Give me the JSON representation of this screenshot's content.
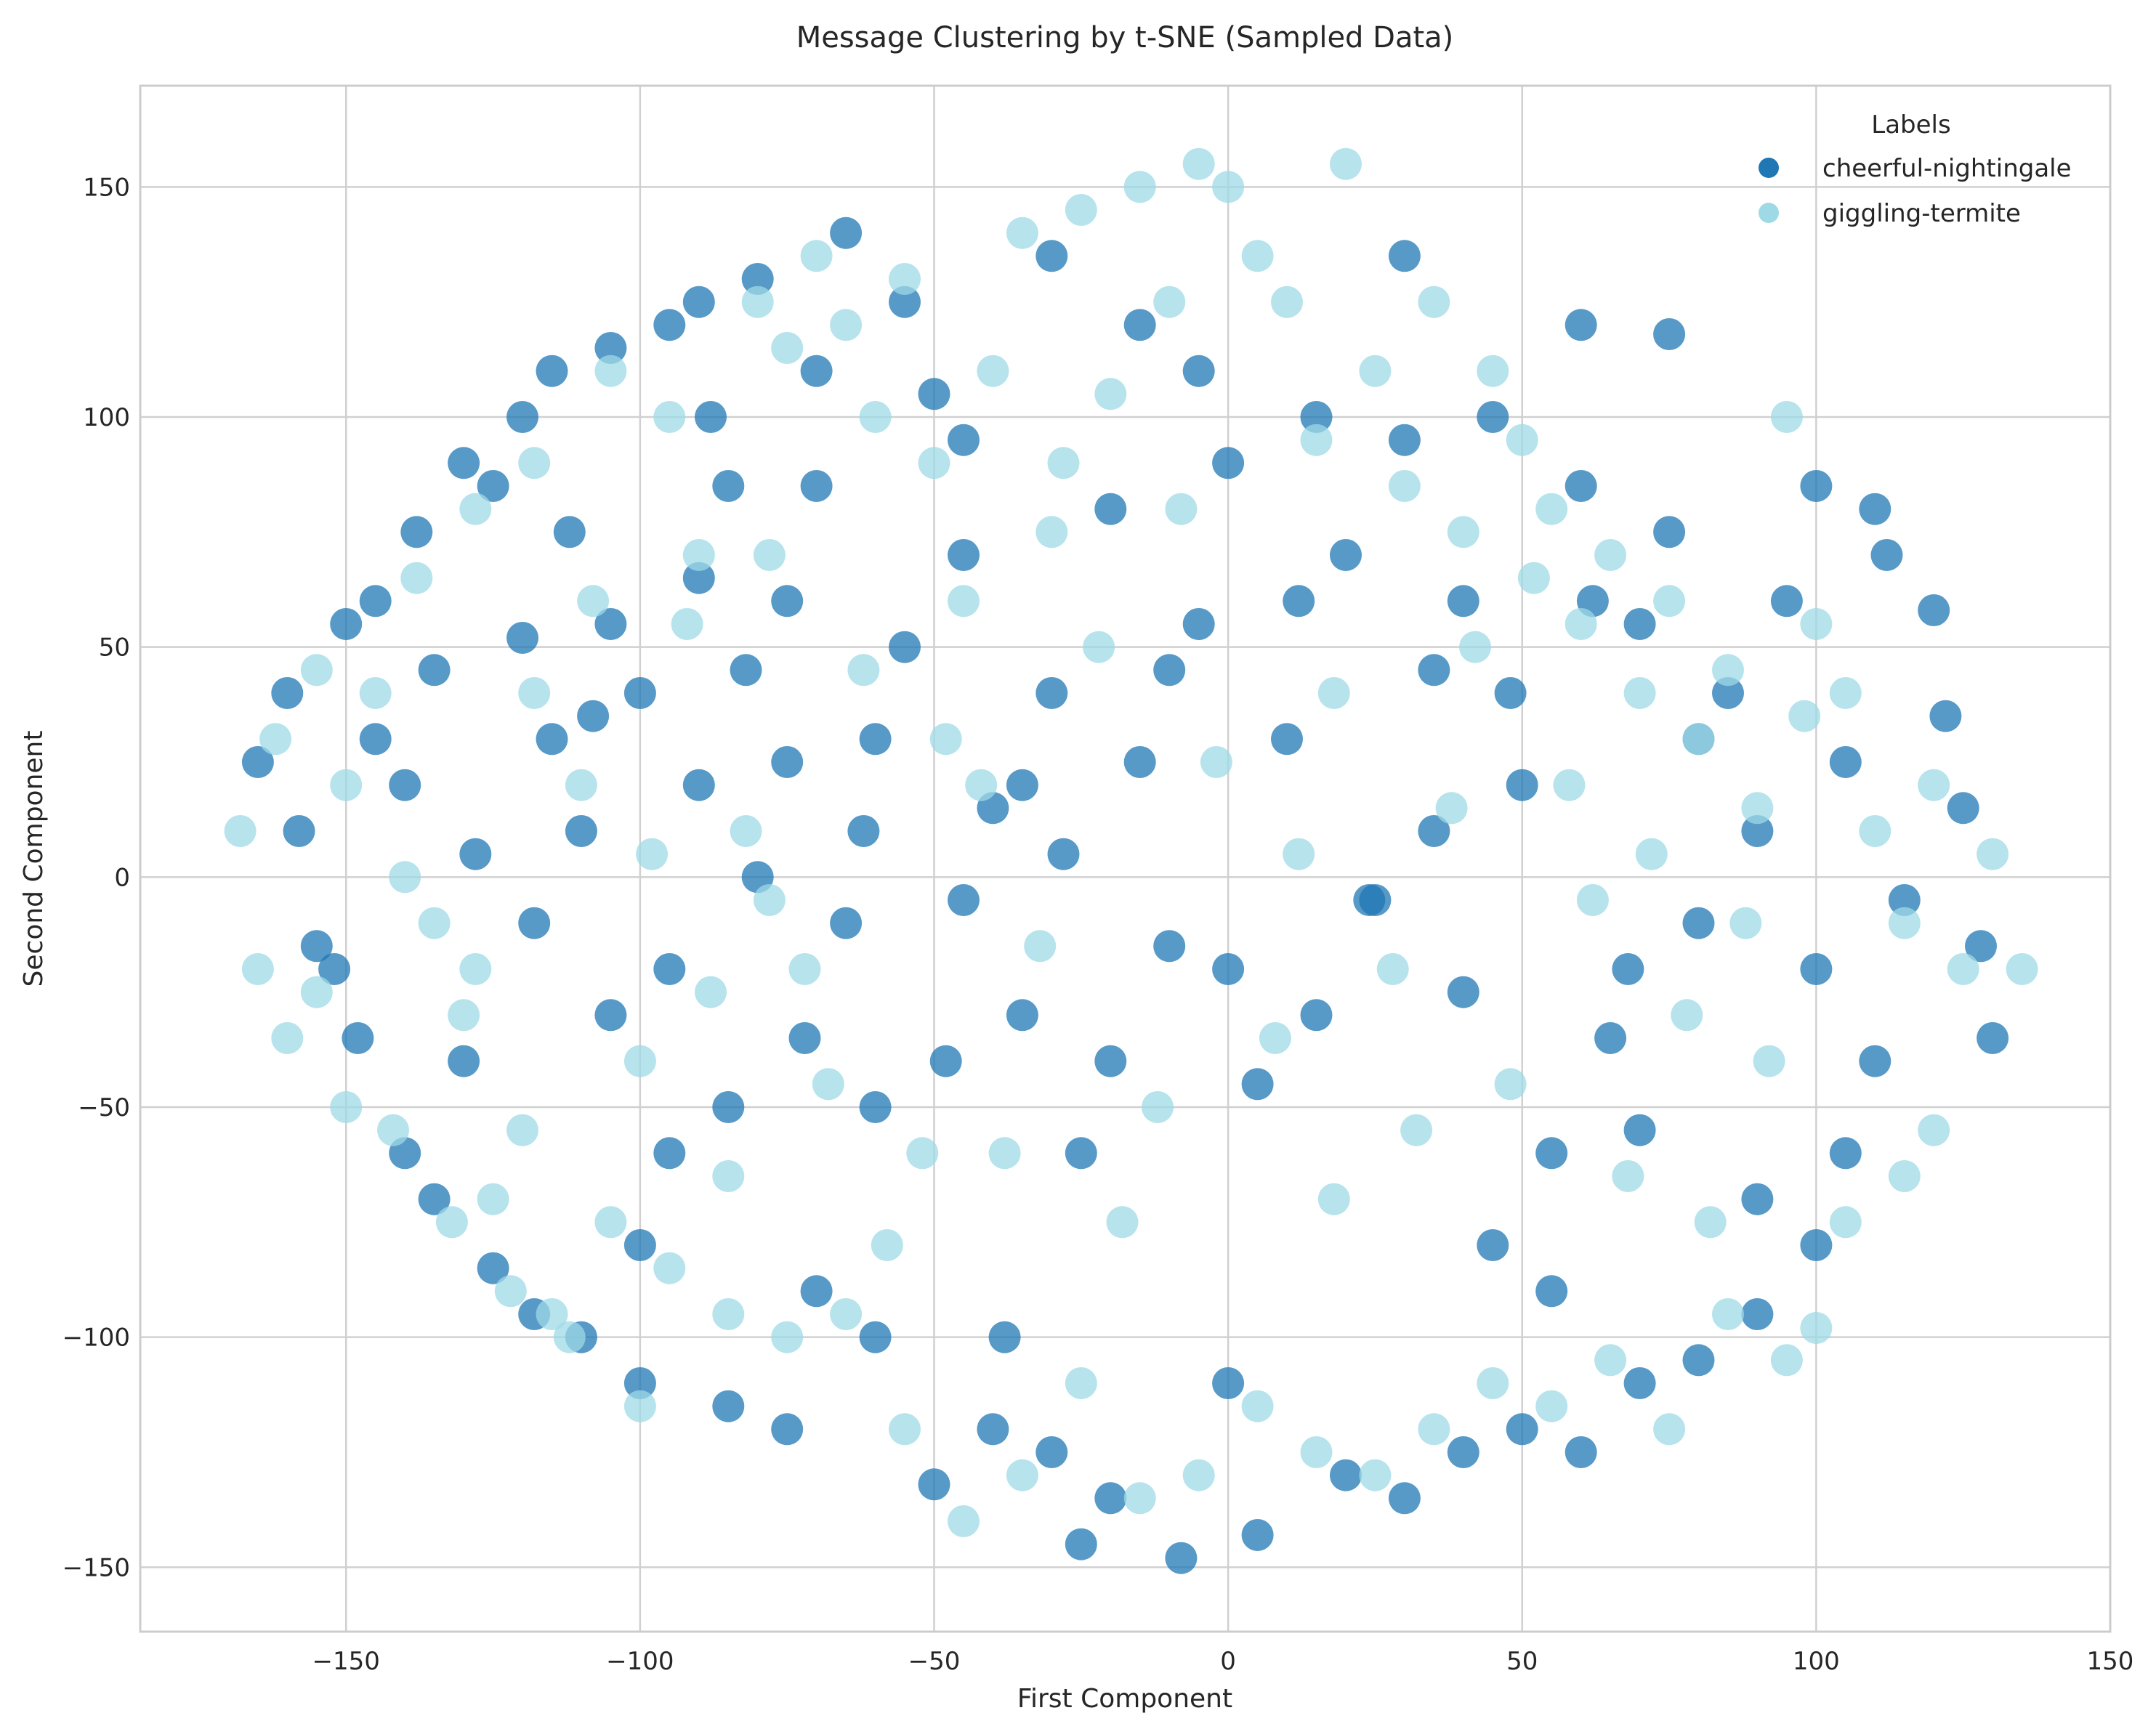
{
  "chart_data": {
    "type": "scatter",
    "title": "Message Clustering by t-SNE (Sampled Data)",
    "xlabel": "First Component",
    "ylabel": "Second Component",
    "xlim": [
      -185,
      150
    ],
    "ylim": [
      -164,
      172
    ],
    "x_ticks": [
      -150,
      -100,
      -50,
      0,
      50,
      100,
      150
    ],
    "x_tick_labels": [
      "−150",
      "−100",
      "−50",
      "0",
      "50",
      "100",
      "150"
    ],
    "y_ticks": [
      -150,
      -100,
      -50,
      0,
      50,
      100,
      150
    ],
    "y_tick_labels": [
      "−150",
      "−100",
      "−50",
      "0",
      "50",
      "100",
      "150"
    ],
    "grid": true,
    "legend": {
      "title": "Labels",
      "placement": "top-right",
      "entries": [
        "cheerful-nightingale",
        "giggling-termite"
      ]
    },
    "series": [
      {
        "name": "cheerful-nightingale",
        "color": "#1f77b4",
        "points": [
          [
            -165,
            25
          ],
          [
            -160,
            40
          ],
          [
            -158,
            10
          ],
          [
            -155,
            -15
          ],
          [
            -150,
            55
          ],
          [
            -148,
            -35
          ],
          [
            -145,
            60
          ],
          [
            -140,
            -60
          ],
          [
            -138,
            75
          ],
          [
            -135,
            -70
          ],
          [
            -130,
            90
          ],
          [
            -125,
            -85
          ],
          [
            -120,
            100
          ],
          [
            -118,
            -95
          ],
          [
            -115,
            110
          ],
          [
            -110,
            -100
          ],
          [
            -105,
            115
          ],
          [
            -100,
            -110
          ],
          [
            -95,
            120
          ],
          [
            -90,
            125
          ],
          [
            -85,
            -115
          ],
          [
            -80,
            130
          ],
          [
            -125,
            85
          ],
          [
            -120,
            52
          ],
          [
            -115,
            30
          ],
          [
            -110,
            10
          ],
          [
            -105,
            55
          ],
          [
            -100,
            40
          ],
          [
            -95,
            -20
          ],
          [
            -90,
            20
          ],
          [
            -85,
            -50
          ],
          [
            -80,
            0
          ],
          [
            -75,
            60
          ],
          [
            -70,
            85
          ],
          [
            -65,
            -10
          ],
          [
            -60,
            30
          ],
          [
            -55,
            50
          ],
          [
            -50,
            105
          ],
          [
            -45,
            70
          ],
          [
            -40,
            15
          ],
          [
            -35,
            -30
          ],
          [
            -30,
            40
          ],
          [
            -25,
            -60
          ],
          [
            -20,
            80
          ],
          [
            -15,
            25
          ],
          [
            -10,
            -15
          ],
          [
            -5,
            55
          ],
          [
            0,
            90
          ],
          [
            5,
            -45
          ],
          [
            10,
            30
          ],
          [
            15,
            -30
          ],
          [
            20,
            70
          ],
          [
            25,
            -5
          ],
          [
            30,
            135
          ],
          [
            35,
            45
          ],
          [
            40,
            -25
          ],
          [
            45,
            100
          ],
          [
            50,
            20
          ],
          [
            55,
            -60
          ],
          [
            60,
            85
          ],
          [
            65,
            -35
          ],
          [
            70,
            55
          ],
          [
            75,
            118
          ],
          [
            80,
            -10
          ],
          [
            85,
            40
          ],
          [
            90,
            -70
          ],
          [
            95,
            60
          ],
          [
            100,
            85
          ],
          [
            105,
            25
          ],
          [
            110,
            80
          ],
          [
            112,
            70
          ],
          [
            115,
            -5
          ],
          [
            120,
            58
          ],
          [
            122,
            35
          ],
          [
            125,
            15
          ],
          [
            128,
            -15
          ],
          [
            130,
            -35
          ],
          [
            110,
            -40
          ],
          [
            105,
            -60
          ],
          [
            100,
            -80
          ],
          [
            90,
            -95
          ],
          [
            80,
            -105
          ],
          [
            70,
            -110
          ],
          [
            60,
            -125
          ],
          [
            50,
            -120
          ],
          [
            40,
            -125
          ],
          [
            30,
            -135
          ],
          [
            20,
            -130
          ],
          [
            5,
            -143
          ],
          [
            -8,
            -148
          ],
          [
            -20,
            -135
          ],
          [
            -30,
            -125
          ],
          [
            -40,
            -120
          ],
          [
            -50,
            -132
          ],
          [
            -60,
            -100
          ],
          [
            -70,
            -90
          ],
          [
            -75,
            -120
          ],
          [
            -45,
            -5
          ],
          [
            -35,
            20
          ],
          [
            -20,
            -40
          ],
          [
            -10,
            45
          ],
          [
            0,
            -20
          ],
          [
            12,
            60
          ],
          [
            24,
            -5
          ],
          [
            -60,
            -50
          ],
          [
            -75,
            25
          ],
          [
            -90,
            65
          ],
          [
            -105,
            -30
          ],
          [
            -130,
            -40
          ],
          [
            -140,
            20
          ],
          [
            -100,
            -80
          ],
          [
            -85,
            85
          ],
          [
            60,
            120
          ],
          [
            75,
            75
          ],
          [
            90,
            10
          ],
          [
            100,
            -20
          ],
          [
            80,
            30
          ],
          [
            70,
            -55
          ],
          [
            55,
            -90
          ],
          [
            40,
            60
          ],
          [
            30,
            95
          ],
          [
            -5,
            110
          ],
          [
            -15,
            120
          ],
          [
            -30,
            135
          ],
          [
            -45,
            95
          ],
          [
            -55,
            125
          ],
          [
            -65,
            140
          ],
          [
            15,
            100
          ],
          [
            0,
            -110
          ],
          [
            -25,
            -145
          ],
          [
            -38,
            -100
          ],
          [
            45,
            -80
          ],
          [
            62,
            60
          ],
          [
            68,
            -20
          ],
          [
            48,
            40
          ],
          [
            35,
            10
          ],
          [
            -28,
            5
          ],
          [
            -48,
            -40
          ],
          [
            -62,
            10
          ],
          [
            -72,
            -35
          ],
          [
            -82,
            45
          ],
          [
            -95,
            -60
          ],
          [
            -108,
            35
          ],
          [
            -118,
            -10
          ],
          [
            -128,
            5
          ],
          [
            -145,
            30
          ],
          [
            -152,
            -20
          ],
          [
            -135,
            45
          ],
          [
            -112,
            75
          ],
          [
            -88,
            100
          ],
          [
            -70,
            110
          ]
        ]
      },
      {
        "name": "giggling-termite",
        "color": "#9edae5",
        "points": [
          [
            -168,
            10
          ],
          [
            -165,
            -20
          ],
          [
            -162,
            30
          ],
          [
            -160,
            -35
          ],
          [
            -155,
            45
          ],
          [
            -150,
            -50
          ],
          [
            -145,
            40
          ],
          [
            -142,
            -55
          ],
          [
            -138,
            65
          ],
          [
            -132,
            -75
          ],
          [
            -128,
            80
          ],
          [
            -122,
            -90
          ],
          [
            -118,
            90
          ],
          [
            -112,
            -100
          ],
          [
            -105,
            110
          ],
          [
            -100,
            -115
          ],
          [
            -95,
            100
          ],
          [
            -90,
            70
          ],
          [
            -85,
            -95
          ],
          [
            -80,
            125
          ],
          [
            -75,
            115
          ],
          [
            -70,
            135
          ],
          [
            -65,
            120
          ],
          [
            -60,
            100
          ],
          [
            -55,
            130
          ],
          [
            -50,
            90
          ],
          [
            -45,
            60
          ],
          [
            -40,
            110
          ],
          [
            -35,
            140
          ],
          [
            -30,
            75
          ],
          [
            -25,
            145
          ],
          [
            -20,
            105
          ],
          [
            -15,
            150
          ],
          [
            -10,
            125
          ],
          [
            -5,
            155
          ],
          [
            0,
            150
          ],
          [
            5,
            135
          ],
          [
            10,
            125
          ],
          [
            15,
            95
          ],
          [
            20,
            155
          ],
          [
            25,
            110
          ],
          [
            30,
            85
          ],
          [
            35,
            125
          ],
          [
            40,
            75
          ],
          [
            45,
            110
          ],
          [
            50,
            95
          ],
          [
            55,
            80
          ],
          [
            60,
            55
          ],
          [
            65,
            70
          ],
          [
            70,
            40
          ],
          [
            75,
            60
          ],
          [
            80,
            30
          ],
          [
            85,
            45
          ],
          [
            90,
            15
          ],
          [
            95,
            100
          ],
          [
            100,
            55
          ],
          [
            105,
            40
          ],
          [
            110,
            10
          ],
          [
            115,
            -10
          ],
          [
            120,
            20
          ],
          [
            125,
            -20
          ],
          [
            130,
            5
          ],
          [
            135,
            -20
          ],
          [
            120,
            -55
          ],
          [
            115,
            -65
          ],
          [
            105,
            -75
          ],
          [
            100,
            -98
          ],
          [
            95,
            -105
          ],
          [
            85,
            -95
          ],
          [
            75,
            -120
          ],
          [
            65,
            -105
          ],
          [
            55,
            -115
          ],
          [
            45,
            -110
          ],
          [
            35,
            -120
          ],
          [
            25,
            -130
          ],
          [
            15,
            -125
          ],
          [
            5,
            -115
          ],
          [
            -5,
            -130
          ],
          [
            -15,
            -135
          ],
          [
            -25,
            -110
          ],
          [
            -35,
            -130
          ],
          [
            -45,
            -140
          ],
          [
            -55,
            -120
          ],
          [
            -65,
            -95
          ],
          [
            -75,
            -100
          ],
          [
            -85,
            -65
          ],
          [
            -95,
            -85
          ],
          [
            -105,
            -75
          ],
          [
            -115,
            -95
          ],
          [
            -120,
            -55
          ],
          [
            -125,
            -70
          ],
          [
            -130,
            -30
          ],
          [
            -135,
            -10
          ],
          [
            -140,
            0
          ],
          [
            -150,
            20
          ],
          [
            -155,
            -25
          ],
          [
            -110,
            20
          ],
          [
            -100,
            -40
          ],
          [
            -92,
            55
          ],
          [
            -82,
            10
          ],
          [
            -72,
            -20
          ],
          [
            -62,
            45
          ],
          [
            -52,
            -60
          ],
          [
            -42,
            20
          ],
          [
            -32,
            -15
          ],
          [
            -22,
            50
          ],
          [
            -12,
            -50
          ],
          [
            -2,
            25
          ],
          [
            8,
            -35
          ],
          [
            18,
            40
          ],
          [
            28,
            -20
          ],
          [
            38,
            15
          ],
          [
            48,
            -45
          ],
          [
            58,
            20
          ],
          [
            68,
            -65
          ],
          [
            78,
            -30
          ],
          [
            88,
            -10
          ],
          [
            98,
            35
          ],
          [
            18,
            -70
          ],
          [
            -8,
            80
          ],
          [
            -28,
            90
          ],
          [
            -48,
            30
          ],
          [
            -68,
            -45
          ],
          [
            -88,
            -25
          ],
          [
            -108,
            60
          ],
          [
            -78,
            70
          ],
          [
            42,
            50
          ],
          [
            52,
            65
          ],
          [
            62,
            -5
          ],
          [
            72,
            5
          ],
          [
            82,
            -75
          ],
          [
            92,
            -40
          ],
          [
            32,
            -55
          ],
          [
            12,
            5
          ],
          [
            -18,
            -75
          ],
          [
            -38,
            -60
          ],
          [
            -58,
            -80
          ],
          [
            -78,
            -5
          ],
          [
            -98,
            5
          ],
          [
            -118,
            40
          ],
          [
            -128,
            -20
          ]
        ]
      }
    ]
  }
}
